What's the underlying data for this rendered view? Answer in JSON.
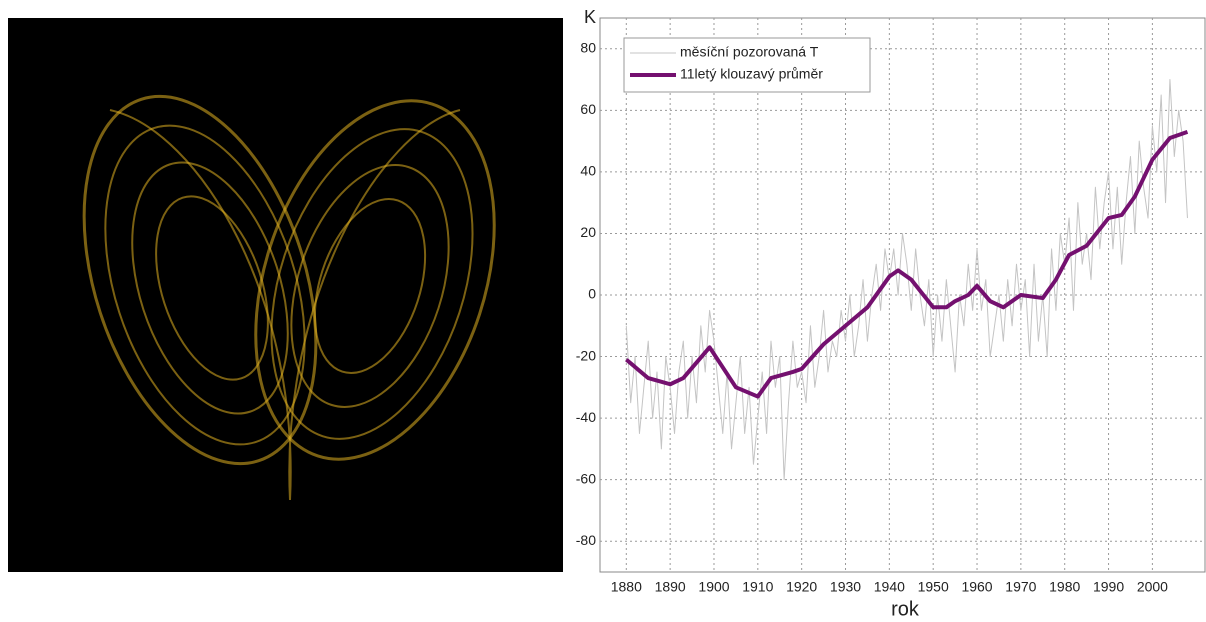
{
  "chart_data": {
    "type": "line",
    "ylabel": "K",
    "xlabel": "rok",
    "xlim": [
      1874,
      2012
    ],
    "ylim": [
      -90,
      90
    ],
    "xticks": [
      1880,
      1890,
      1900,
      1910,
      1920,
      1930,
      1940,
      1950,
      1960,
      1970,
      1980,
      1990,
      2000
    ],
    "yticks": [
      -80,
      -60,
      -40,
      -20,
      0,
      20,
      40,
      60,
      80
    ],
    "grid": true,
    "legend": "upper left",
    "series": [
      {
        "name": "měsíční pozorovaná T",
        "color": "#c4c4c4",
        "width": 1,
        "x": [
          1880,
          1881,
          1882,
          1883,
          1884,
          1885,
          1886,
          1887,
          1888,
          1889,
          1890,
          1891,
          1892,
          1893,
          1894,
          1895,
          1896,
          1897,
          1898,
          1899,
          1900,
          1901,
          1902,
          1903,
          1904,
          1905,
          1906,
          1907,
          1908,
          1909,
          1910,
          1911,
          1912,
          1913,
          1914,
          1915,
          1916,
          1917,
          1918,
          1919,
          1920,
          1921,
          1922,
          1923,
          1924,
          1925,
          1926,
          1927,
          1928,
          1929,
          1930,
          1931,
          1932,
          1933,
          1934,
          1935,
          1936,
          1937,
          1938,
          1939,
          1940,
          1941,
          1942,
          1943,
          1944,
          1945,
          1946,
          1947,
          1948,
          1949,
          1950,
          1951,
          1952,
          1953,
          1954,
          1955,
          1956,
          1957,
          1958,
          1959,
          1960,
          1961,
          1962,
          1963,
          1964,
          1965,
          1966,
          1967,
          1968,
          1969,
          1970,
          1971,
          1972,
          1973,
          1974,
          1975,
          1976,
          1977,
          1978,
          1979,
          1980,
          1981,
          1982,
          1983,
          1984,
          1985,
          1986,
          1987,
          1988,
          1989,
          1990,
          1991,
          1992,
          1993,
          1994,
          1995,
          1996,
          1997,
          1998,
          1999,
          2000,
          2001,
          2002,
          2003,
          2004,
          2005,
          2006,
          2007,
          2008
        ],
        "values": [
          -10,
          -35,
          -20,
          -45,
          -30,
          -15,
          -40,
          -25,
          -50,
          -20,
          -30,
          -45,
          -25,
          -15,
          -40,
          -20,
          -35,
          -10,
          -25,
          -5,
          -15,
          -30,
          -45,
          -25,
          -50,
          -35,
          -20,
          -45,
          -30,
          -55,
          -40,
          -25,
          -45,
          -15,
          -30,
          -20,
          -60,
          -35,
          -15,
          -30,
          -25,
          -35,
          -10,
          -30,
          -20,
          -5,
          -25,
          -15,
          -20,
          -5,
          -15,
          0,
          -20,
          -10,
          5,
          -15,
          0,
          10,
          -5,
          15,
          5,
          15,
          0,
          20,
          10,
          -5,
          15,
          0,
          -10,
          5,
          -20,
          0,
          -15,
          5,
          -10,
          -25,
          0,
          -10,
          10,
          -5,
          15,
          -5,
          5,
          -20,
          -10,
          0,
          -15,
          5,
          -10,
          10,
          -5,
          5,
          -20,
          10,
          -15,
          0,
          -20,
          15,
          -5,
          20,
          10,
          25,
          -5,
          30,
          10,
          20,
          5,
          35,
          15,
          30,
          40,
          15,
          35,
          10,
          30,
          45,
          20,
          50,
          35,
          25,
          55,
          40,
          65,
          30,
          70,
          45,
          60,
          50,
          25
        ]
      },
      {
        "name": "11letý klouzavý průměr",
        "color": "#74106f",
        "width": 4,
        "x": [
          1880,
          1885,
          1890,
          1893,
          1899,
          1905,
          1910,
          1913,
          1918,
          1920,
          1925,
          1930,
          1935,
          1940,
          1942,
          1945,
          1950,
          1953,
          1955,
          1958,
          1960,
          1963,
          1966,
          1970,
          1975,
          1978,
          1981,
          1985,
          1990,
          1993,
          1996,
          2000,
          2004,
          2008
        ],
        "values": [
          -21,
          -27,
          -29,
          -27,
          -17,
          -30,
          -33,
          -27,
          -25,
          -24,
          -16,
          -10,
          -4,
          6,
          8,
          5,
          -4,
          -4,
          -2,
          0,
          3,
          -2,
          -4,
          0,
          -1,
          5,
          13,
          16,
          25,
          26,
          32,
          44,
          51,
          53
        ]
      }
    ]
  }
}
